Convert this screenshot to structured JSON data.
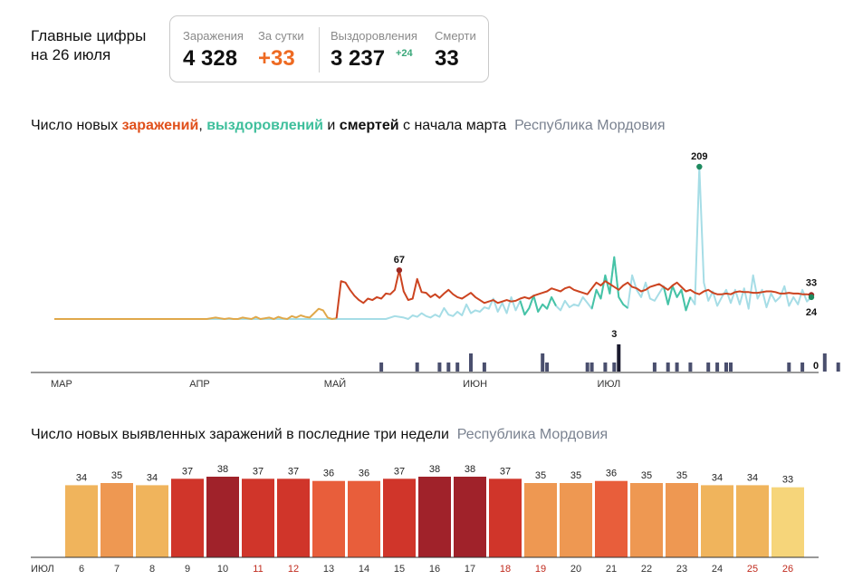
{
  "header": {
    "title_line1": "Главные цифры",
    "title_line2": "на 26 июля"
  },
  "stats": {
    "infections_label": "Заражения",
    "infections_value": "4 328",
    "daily_label": "За сутки",
    "daily_value": "+33",
    "recovered_label": "Выздоровления",
    "recovered_value": "3 237",
    "recovered_delta": "+24",
    "deaths_label": "Смерти",
    "deaths_value": "33"
  },
  "colors": {
    "infections": "#d8471c",
    "recoveries": "#3fbfa0",
    "recoveries_light": "#9edbe4",
    "early_line": "#e0a84a",
    "deaths": "#4a4f6e",
    "region": "#7a8290"
  },
  "chart1": {
    "title_part1": "Число новых ",
    "title_infections": "заражений",
    "title_sep": ", ",
    "title_recoveries": "выздоровлений",
    "title_and": " и ",
    "title_deaths": "смертей",
    "title_rest": " с начала марта",
    "region": "Республика Мордовия",
    "month_labels": [
      "МАР",
      "АПР",
      "МАЙ",
      "ИЮН",
      "ИЮЛ"
    ],
    "annotations": {
      "inf_peak": "67",
      "rec_peak": "209",
      "death_peak": "3",
      "last_inf": "33",
      "last_rec": "24",
      "last_death": "0"
    }
  },
  "chart2": {
    "title": "Число новых выявленных заражений в последние три недели",
    "region": "Республика Мордовия",
    "month_label": "ИЮЛ"
  },
  "chart_data": [
    {
      "type": "line",
      "title": "Число новых заражений, выздоровлений и смертей с начала марта",
      "x_range": [
        "2020-03-01",
        "2020-07-26"
      ],
      "x_ticks": [
        "МАР",
        "АПР",
        "МАЙ",
        "ИЮН",
        "ИЮЛ"
      ],
      "series": [
        {
          "name": "заражений",
          "values": [
            0,
            0,
            0,
            0,
            0,
            0,
            0,
            0,
            0,
            0,
            0,
            0,
            0,
            0,
            0,
            0,
            0,
            0,
            0,
            0,
            0,
            0,
            0,
            0,
            0,
            0,
            0,
            0,
            0,
            0,
            0,
            0,
            0,
            0,
            0,
            1,
            2,
            1,
            0,
            1,
            0,
            0,
            2,
            1,
            0,
            3,
            0,
            1,
            2,
            0,
            3,
            1,
            0,
            4,
            2,
            5,
            3,
            2,
            8,
            14,
            12,
            2,
            0,
            1,
            52,
            50,
            40,
            32,
            26,
            22,
            28,
            26,
            30,
            28,
            35,
            34,
            40,
            67,
            38,
            26,
            28,
            55,
            37,
            36,
            30,
            34,
            29,
            35,
            40,
            34,
            30,
            28,
            32,
            36,
            30,
            26,
            22,
            24,
            26,
            22,
            24,
            26,
            24,
            25,
            28,
            30,
            28,
            32,
            34,
            36,
            38,
            42,
            40,
            38,
            42,
            44,
            40,
            38,
            36,
            34,
            42,
            50,
            46,
            52,
            48,
            44,
            40,
            46,
            50,
            44,
            42,
            38,
            40,
            44,
            46,
            48,
            44,
            40,
            46,
            50,
            44,
            38,
            40,
            36,
            34,
            38,
            40,
            36,
            34,
            34,
            35,
            34,
            37,
            38,
            37,
            37,
            36,
            36,
            37,
            38,
            38,
            37,
            35,
            35,
            36,
            35,
            35,
            34,
            34,
            33
          ]
        },
        {
          "name": "выздоровлений",
          "values": [
            0,
            0,
            0,
            0,
            0,
            0,
            0,
            0,
            0,
            0,
            0,
            0,
            0,
            0,
            0,
            0,
            0,
            0,
            0,
            0,
            0,
            0,
            0,
            0,
            0,
            0,
            0,
            0,
            0,
            0,
            0,
            0,
            0,
            0,
            0,
            0,
            0,
            0,
            0,
            0,
            0,
            0,
            0,
            0,
            0,
            0,
            0,
            0,
            0,
            0,
            0,
            0,
            0,
            0,
            0,
            0,
            0,
            0,
            0,
            0,
            0,
            0,
            0,
            0,
            0,
            0,
            0,
            0,
            0,
            0,
            0,
            0,
            0,
            0,
            0,
            2,
            4,
            3,
            2,
            0,
            5,
            3,
            8,
            4,
            2,
            6,
            3,
            15,
            6,
            4,
            10,
            5,
            20,
            8,
            12,
            10,
            16,
            14,
            28,
            10,
            22,
            8,
            30,
            12,
            25,
            6,
            15,
            32,
            10,
            20,
            14,
            30,
            18,
            12,
            25,
            16,
            20,
            18,
            30,
            22,
            14,
            40,
            28,
            60,
            35,
            85,
            30,
            20,
            15,
            60,
            40,
            30,
            50,
            28,
            25,
            35,
            45,
            20,
            45,
            30,
            40,
            12,
            30,
            20,
            209,
            50,
            25,
            38,
            18,
            30,
            40,
            22,
            40,
            20,
            42,
            14,
            60,
            28,
            40,
            16,
            35,
            24,
            30,
            45,
            18,
            30,
            20,
            40,
            24,
            30,
            20,
            36,
            26,
            22,
            24
          ]
        },
        {
          "name": "смертей",
          "values": [
            0,
            0,
            0,
            0,
            0,
            0,
            0,
            0,
            0,
            0,
            0,
            0,
            0,
            0,
            0,
            0,
            0,
            0,
            0,
            0,
            0,
            0,
            0,
            0,
            0,
            0,
            0,
            0,
            0,
            0,
            0,
            0,
            0,
            0,
            0,
            0,
            0,
            0,
            0,
            0,
            0,
            0,
            0,
            0,
            0,
            0,
            0,
            0,
            0,
            0,
            0,
            0,
            0,
            0,
            0,
            0,
            0,
            0,
            0,
            0,
            0,
            0,
            0,
            0,
            0,
            0,
            0,
            0,
            0,
            0,
            0,
            0,
            0,
            1,
            0,
            0,
            0,
            0,
            0,
            0,
            0,
            1,
            0,
            0,
            0,
            0,
            1,
            0,
            1,
            0,
            1,
            0,
            0,
            2,
            0,
            0,
            1,
            0,
            0,
            0,
            0,
            0,
            0,
            0,
            0,
            0,
            0,
            0,
            0,
            2,
            1,
            0,
            0,
            0,
            0,
            0,
            0,
            0,
            0,
            1,
            1,
            0,
            0,
            1,
            0,
            1,
            3,
            0,
            0,
            0,
            0,
            0,
            0,
            0,
            1,
            0,
            0,
            1,
            0,
            1,
            0,
            0,
            1,
            0,
            0,
            0,
            1,
            0,
            1,
            0,
            1,
            1,
            0,
            0,
            0,
            0,
            0,
            0,
            0,
            0,
            0,
            0,
            0,
            0,
            1,
            0,
            0,
            1,
            0,
            0,
            0,
            0,
            2,
            0,
            0,
            1,
            0
          ]
        }
      ]
    },
    {
      "type": "bar",
      "title": "Число новых выявленных заражений в последние три недели",
      "categories": [
        "6",
        "7",
        "8",
        "9",
        "10",
        "11",
        "12",
        "13",
        "14",
        "15",
        "16",
        "17",
        "18",
        "19",
        "20",
        "21",
        "22",
        "23",
        "24",
        "25",
        "26"
      ],
      "weekend": [
        false,
        false,
        false,
        false,
        false,
        true,
        true,
        false,
        false,
        false,
        false,
        false,
        true,
        true,
        false,
        false,
        false,
        false,
        false,
        true,
        true
      ],
      "values": [
        34,
        35,
        34,
        37,
        38,
        37,
        37,
        36,
        36,
        37,
        38,
        38,
        37,
        35,
        35,
        36,
        35,
        35,
        34,
        34,
        33
      ],
      "ylim": [
        0,
        38
      ]
    }
  ]
}
